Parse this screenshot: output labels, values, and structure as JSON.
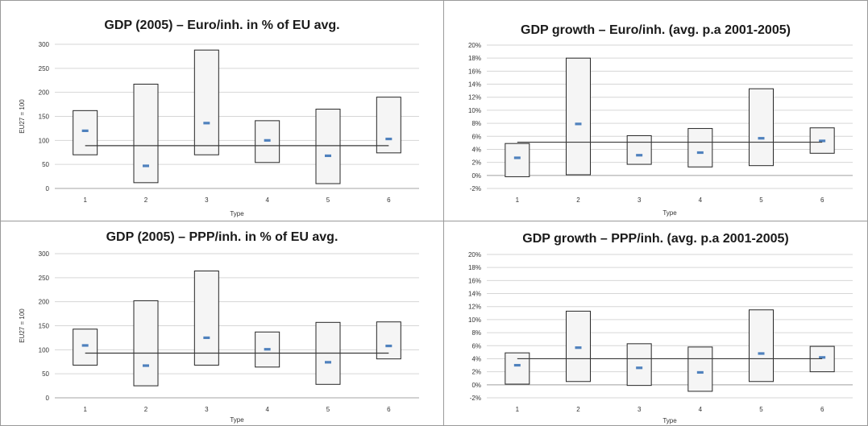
{
  "colors": {
    "mean_marker": "#4f81bd",
    "box_fill": "#f5f5f5",
    "box_stroke": "#262626",
    "grid": "#d6d6d6",
    "reference_line": "#3a3a3a"
  },
  "chart_data": [
    {
      "type": "box",
      "title": "GDP (2005) – Euro/inh. in % of EU avg.",
      "xlabel": "Type",
      "ylabel": "EU27 = 100",
      "categories": [
        "1",
        "2",
        "3",
        "4",
        "5",
        "6"
      ],
      "ylim": [
        0,
        300
      ],
      "yticks": [
        "0",
        "50",
        "100",
        "150",
        "200",
        "250",
        "300"
      ],
      "min": [
        70,
        12,
        70,
        54,
        10,
        74
      ],
      "max": [
        162,
        217,
        288,
        141,
        165,
        190
      ],
      "mean": [
        120,
        47,
        136,
        100,
        68,
        103
      ],
      "reference_line": 89,
      "grid": true
    },
    {
      "type": "box",
      "title": "GDP growth – Euro/inh. (avg. p.a 2001-2005)",
      "xlabel": "Type",
      "ylabel": "",
      "categories": [
        "1",
        "2",
        "3",
        "4",
        "5",
        "6"
      ],
      "ylim": [
        -2,
        20
      ],
      "yticks": [
        "-2%",
        "0%",
        "2%",
        "4%",
        "6%",
        "8%",
        "10%",
        "12%",
        "14%",
        "16%",
        "18%",
        "20%"
      ],
      "min": [
        -0.2,
        0.1,
        1.7,
        1.3,
        1.5,
        3.4
      ],
      "max": [
        4.9,
        18.0,
        6.1,
        7.2,
        13.3,
        7.3
      ],
      "mean": [
        2.7,
        7.9,
        3.1,
        3.5,
        5.7,
        5.3
      ],
      "reference_line": 5.1,
      "grid": true
    },
    {
      "type": "box",
      "title": "GDP (2005) – PPP/inh. in % of EU avg.",
      "xlabel": "Type",
      "ylabel": "EU27 = 100",
      "categories": [
        "1",
        "2",
        "3",
        "4",
        "5",
        "6"
      ],
      "ylim": [
        0,
        300
      ],
      "yticks": [
        "0",
        "50",
        "100",
        "150",
        "200",
        "250",
        "300"
      ],
      "min": [
        68,
        25,
        68,
        64,
        28,
        81
      ],
      "max": [
        143,
        202,
        264,
        137,
        157,
        158
      ],
      "mean": [
        109,
        67,
        125,
        101,
        74,
        108
      ],
      "reference_line": 93,
      "grid": true
    },
    {
      "type": "box",
      "title": "GDP growth – PPP/inh. (avg. p.a 2001-2005)",
      "xlabel": "Type",
      "ylabel": "",
      "categories": [
        "1",
        "2",
        "3",
        "4",
        "5",
        "6"
      ],
      "ylim": [
        -2,
        20
      ],
      "yticks": [
        "-2%",
        "0%",
        "2%",
        "4%",
        "6%",
        "8%",
        "10%",
        "12%",
        "14%",
        "16%",
        "18%",
        "20%"
      ],
      "min": [
        0.1,
        0.5,
        -0.1,
        -1.0,
        0.5,
        2.0
      ],
      "max": [
        4.9,
        11.3,
        6.3,
        5.8,
        11.5,
        5.9
      ],
      "mean": [
        3.0,
        5.7,
        2.6,
        1.9,
        4.8,
        4.2
      ],
      "reference_line": 4.0,
      "grid": true
    }
  ]
}
